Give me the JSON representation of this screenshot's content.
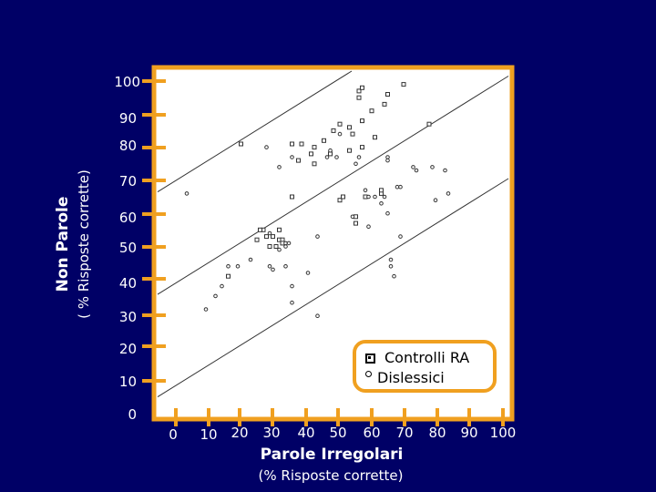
{
  "chart_data": {
    "type": "scatter",
    "title": "",
    "ylabel": "Non Parole",
    "ylabel_sub": "( % Risposte corrette)",
    "xlabel": "Parole Irregolari",
    "xlabel_sub": "(% Risposte corrette)",
    "xlim": [
      0,
      100
    ],
    "ylim": [
      0,
      100
    ],
    "x_ticks": [
      "0",
      "10",
      "20",
      "30",
      "40",
      "50",
      "60",
      "70",
      "80",
      "90",
      "100"
    ],
    "y_ticks": [
      "100",
      "90",
      "80",
      "70",
      "60",
      "50",
      "40",
      "30",
      "20",
      "10",
      "0"
    ],
    "grid": false,
    "legend_position": "bottom-right",
    "frame_color": "#f0a020",
    "background_color": "#000066",
    "series": [
      {
        "name": "Controlli RA",
        "marker": "square",
        "points": [
          [
            54,
            97
          ],
          [
            54,
            95
          ],
          [
            55,
            98
          ],
          [
            58,
            91
          ],
          [
            63,
            96
          ],
          [
            62,
            93
          ],
          [
            68,
            99
          ],
          [
            48,
            87
          ],
          [
            51,
            86
          ],
          [
            55,
            88
          ],
          [
            59,
            83
          ],
          [
            52,
            84
          ],
          [
            46,
            85
          ],
          [
            43,
            82
          ],
          [
            36,
            81
          ],
          [
            40,
            80
          ],
          [
            39,
            78
          ],
          [
            45,
            78
          ],
          [
            35,
            76
          ],
          [
            40,
            75
          ],
          [
            51,
            79
          ],
          [
            55,
            80
          ],
          [
            17,
            81
          ],
          [
            33,
            81
          ],
          [
            76,
            87
          ],
          [
            48,
            64
          ],
          [
            49,
            65
          ],
          [
            56,
            65
          ],
          [
            61,
            66
          ],
          [
            53,
            57
          ],
          [
            33,
            65
          ],
          [
            53,
            59
          ],
          [
            25,
            53
          ],
          [
            27,
            53
          ],
          [
            29,
            55
          ],
          [
            29,
            52
          ],
          [
            30,
            52
          ],
          [
            26,
            50
          ],
          [
            28,
            50
          ],
          [
            30,
            51
          ],
          [
            13,
            41
          ],
          [
            24,
            55
          ],
          [
            23,
            55
          ],
          [
            22,
            52
          ],
          [
            61,
            67
          ]
        ]
      },
      {
        "name": "Dislessici",
        "marker": "circle",
        "points": [
          [
            25,
            80
          ],
          [
            33,
            77
          ],
          [
            29,
            74
          ],
          [
            45,
            79
          ],
          [
            47,
            77
          ],
          [
            44,
            77
          ],
          [
            63,
            77
          ],
          [
            63,
            76
          ],
          [
            54,
            77
          ],
          [
            48,
            84
          ],
          [
            71,
            74
          ],
          [
            72,
            73
          ],
          [
            81,
            73
          ],
          [
            77,
            74
          ],
          [
            82,
            66
          ],
          [
            66,
            68
          ],
          [
            57,
            65
          ],
          [
            67,
            68
          ],
          [
            61,
            63
          ],
          [
            62,
            65
          ],
          [
            59,
            65
          ],
          [
            63,
            60
          ],
          [
            57,
            56
          ],
          [
            67,
            53
          ],
          [
            52,
            59
          ],
          [
            41,
            53
          ],
          [
            26,
            54
          ],
          [
            31,
            51
          ],
          [
            31,
            50
          ],
          [
            32,
            51
          ],
          [
            20,
            46
          ],
          [
            26,
            44
          ],
          [
            33,
            38
          ],
          [
            38,
            42
          ],
          [
            41,
            29
          ],
          [
            33,
            33
          ],
          [
            64,
            46
          ],
          [
            64,
            44
          ],
          [
            65,
            41
          ],
          [
            0,
            66
          ],
          [
            13,
            44
          ],
          [
            16,
            44
          ],
          [
            6,
            31
          ],
          [
            9,
            35
          ],
          [
            11,
            38
          ],
          [
            29,
            49
          ],
          [
            31,
            44
          ],
          [
            27,
            43
          ],
          [
            56,
            67
          ],
          [
            53,
            75
          ],
          [
            78,
            64
          ]
        ]
      }
    ],
    "reference_lines": [
      {
        "x": [
          0,
          100
        ],
        "y": [
          72,
          132
        ]
      },
      {
        "x": [
          0,
          100
        ],
        "y": [
          41,
          101
        ]
      },
      {
        "x": [
          0,
          100
        ],
        "y": [
          10,
          70
        ]
      }
    ]
  }
}
